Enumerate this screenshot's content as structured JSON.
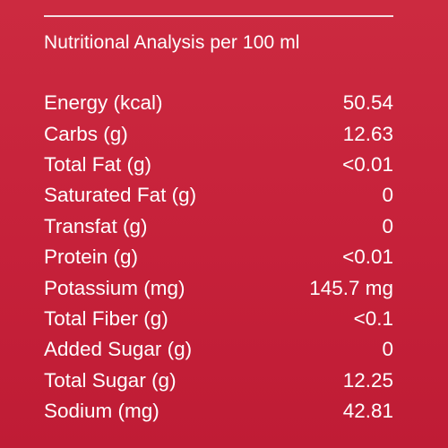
{
  "title": "Nutritional Analysis per 100 ml",
  "rows": [
    {
      "label": "Energy (kcal)",
      "value": "50.54"
    },
    {
      "label": "Carbs (g)",
      "value": "12.63"
    },
    {
      "label": "Total Fat (g)",
      "value": "<0.01"
    },
    {
      "label": "Saturated Fat (g)",
      "value": "0"
    },
    {
      "label": "Transfat (g)",
      "value": "0"
    },
    {
      "label": "Protein (g)",
      "value": "<0.01"
    },
    {
      "label": "Potassium (mg)",
      "value": "145.7 mg"
    },
    {
      "label": "Total Fiber (g)",
      "value": "<0.1"
    },
    {
      "label": "Added Sugar (g)",
      "value": "0"
    },
    {
      "label": "Total Sugar (g)",
      "value": "12.25"
    },
    {
      "label": "Sodium (mg)",
      "value": "42.81"
    }
  ],
  "colors": {
    "background": "#c8243b",
    "text": "#ffffff",
    "divider": "#f3dfe2"
  }
}
